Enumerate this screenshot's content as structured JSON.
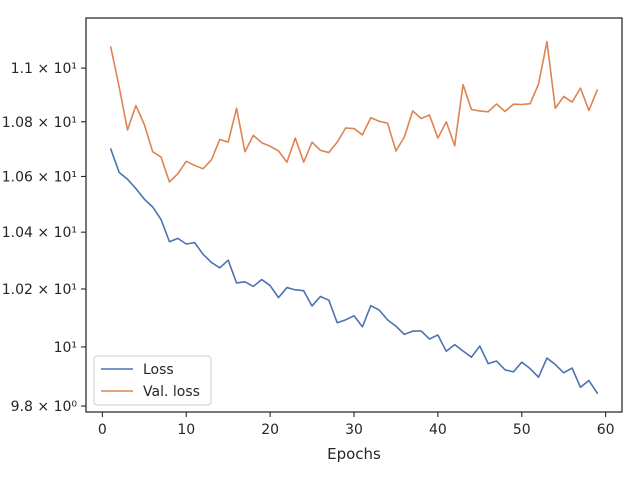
{
  "chart_data": {
    "type": "line",
    "title": "",
    "xlabel": "Epochs",
    "ylabel": "",
    "xlim": [
      -1.95,
      61.95
    ],
    "ylim": [
      9.78,
      11.19
    ],
    "y_scale": "log",
    "grid": false,
    "legend_position": "lower-left",
    "x_ticks": [
      {
        "value": 0,
        "label": "0"
      },
      {
        "value": 10,
        "label": "10"
      },
      {
        "value": 20,
        "label": "20"
      },
      {
        "value": 30,
        "label": "30"
      },
      {
        "value": 40,
        "label": "40"
      },
      {
        "value": 50,
        "label": "50"
      },
      {
        "value": 60,
        "label": "60"
      }
    ],
    "y_ticks": [
      {
        "value": 9.8,
        "label": "9.8 × 10⁰"
      },
      {
        "value": 10,
        "label": "10¹"
      },
      {
        "value": 10.2,
        "label": "1.02 × 10¹"
      },
      {
        "value": 10.4,
        "label": "1.04 × 10¹"
      },
      {
        "value": 10.6,
        "label": "1.06 × 10¹"
      },
      {
        "value": 10.8,
        "label": "1.08 × 10¹"
      },
      {
        "value": 11.0,
        "label": "1.1 × 10¹"
      }
    ],
    "x": [
      1,
      2,
      3,
      4,
      5,
      6,
      7,
      8,
      9,
      10,
      11,
      12,
      13,
      14,
      15,
      16,
      17,
      18,
      19,
      20,
      21,
      22,
      23,
      24,
      25,
      26,
      27,
      28,
      29,
      30,
      31,
      32,
      33,
      34,
      35,
      36,
      37,
      38,
      39,
      40,
      41,
      42,
      43,
      44,
      45,
      46,
      47,
      48,
      49,
      50,
      51,
      52,
      53,
      54,
      55,
      56,
      57,
      58,
      59
    ],
    "series": [
      {
        "name": "Loss",
        "color": "#4c72b0",
        "values": [
          10.7,
          10.615,
          10.59,
          10.556,
          10.518,
          10.49,
          10.445,
          10.366,
          10.378,
          10.358,
          10.363,
          10.322,
          10.293,
          10.274,
          10.301,
          10.221,
          10.225,
          10.209,
          10.233,
          10.212,
          10.17,
          10.205,
          10.197,
          10.194,
          10.141,
          10.174,
          10.161,
          10.083,
          10.093,
          10.107,
          10.069,
          10.142,
          10.127,
          10.093,
          10.071,
          10.043,
          10.054,
          10.055,
          10.027,
          10.041,
          9.985,
          10.008,
          9.986,
          9.965,
          10.003,
          9.943,
          9.952,
          9.922,
          9.915,
          9.948,
          9.926,
          9.897,
          9.962,
          9.94,
          9.912,
          9.928,
          9.863,
          9.886,
          9.843
        ]
      },
      {
        "name": "Val. loss",
        "color": "#dd8452",
        "values": [
          11.08,
          10.93,
          10.77,
          10.86,
          10.79,
          10.69,
          10.67,
          10.58,
          10.61,
          10.655,
          10.64,
          10.628,
          10.66,
          10.735,
          10.725,
          10.85,
          10.69,
          10.75,
          10.723,
          10.71,
          10.693,
          10.652,
          10.74,
          10.652,
          10.725,
          10.695,
          10.687,
          10.725,
          10.777,
          10.775,
          10.752,
          10.815,
          10.802,
          10.795,
          10.693,
          10.744,
          10.84,
          10.812,
          10.825,
          10.74,
          10.8,
          10.712,
          10.938,
          10.845,
          10.84,
          10.837,
          10.866,
          10.838,
          10.865,
          10.864,
          10.867,
          10.94,
          11.1,
          10.85,
          10.894,
          10.873,
          10.925,
          10.842,
          10.918
        ]
      }
    ]
  }
}
